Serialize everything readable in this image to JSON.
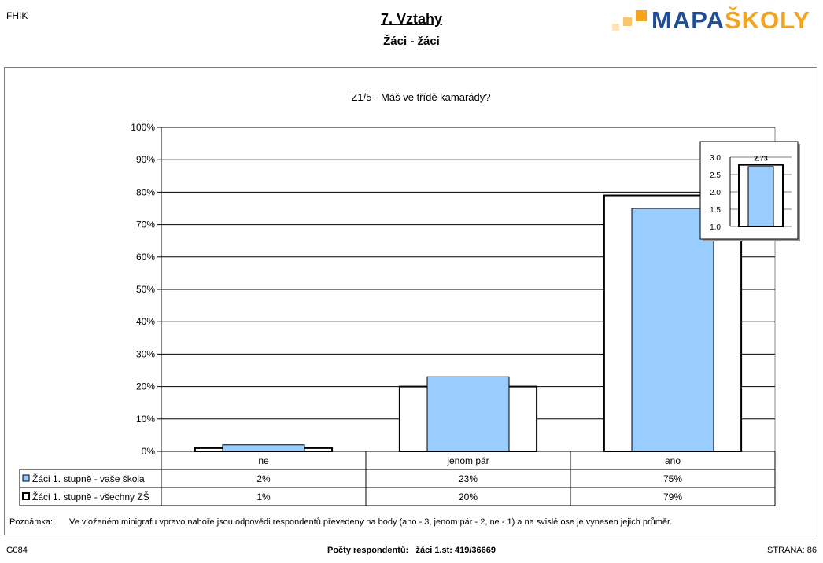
{
  "header": {
    "corner_code": "FHIK",
    "title": "7. Vztahy",
    "subtitle": "Žáci - žáci",
    "logo": {
      "part1": "MAPA",
      "part2": "ŠKOLY",
      "colors": [
        "#1f4e96",
        "#f5a31a"
      ]
    }
  },
  "chart_data": {
    "type": "bar",
    "title": "Z1/5 - Máš ve třídě kamarády?",
    "categories": [
      "ne",
      "jenom pár",
      "ano"
    ],
    "ylim": [
      0,
      100
    ],
    "y_ticks": [
      "0%",
      "10%",
      "20%",
      "30%",
      "40%",
      "50%",
      "60%",
      "70%",
      "80%",
      "90%",
      "100%"
    ],
    "series": [
      {
        "name": "Žáci 1. stupně - vaše škola",
        "values": [
          2,
          23,
          75
        ],
        "labels": [
          "2%",
          "23%",
          "75%"
        ],
        "color": "#99ccff"
      },
      {
        "name": "Žáci 1. stupně - všechny ZŠ",
        "values": [
          1,
          20,
          79
        ],
        "labels": [
          "1%",
          "20%",
          "79%"
        ],
        "color": "#ffffff"
      }
    ],
    "grid": true,
    "legend": "data-table",
    "inset": {
      "type": "bar",
      "value": 2.73,
      "label": "2.73",
      "ylim": [
        1.0,
        3.0
      ],
      "y_ticks": [
        "1.0",
        "1.5",
        "2.0",
        "2.5",
        "3.0"
      ],
      "overall_value": 2.78,
      "color": "#99ccff"
    }
  },
  "note": {
    "label": "Poznámka:",
    "text": "Ve vloženém minigrafu vpravo nahoře jsou odpovědi respondentů převedeny na body (ano - 3, jenom pár - 2, ne - 1) a na svislé ose je vynesen jejich průměr."
  },
  "footer": {
    "code": "G084",
    "respondents_label": "Počty respondentů:",
    "respondents_value": "žáci 1.st: 419/36669",
    "page": "STRANA: 86"
  }
}
